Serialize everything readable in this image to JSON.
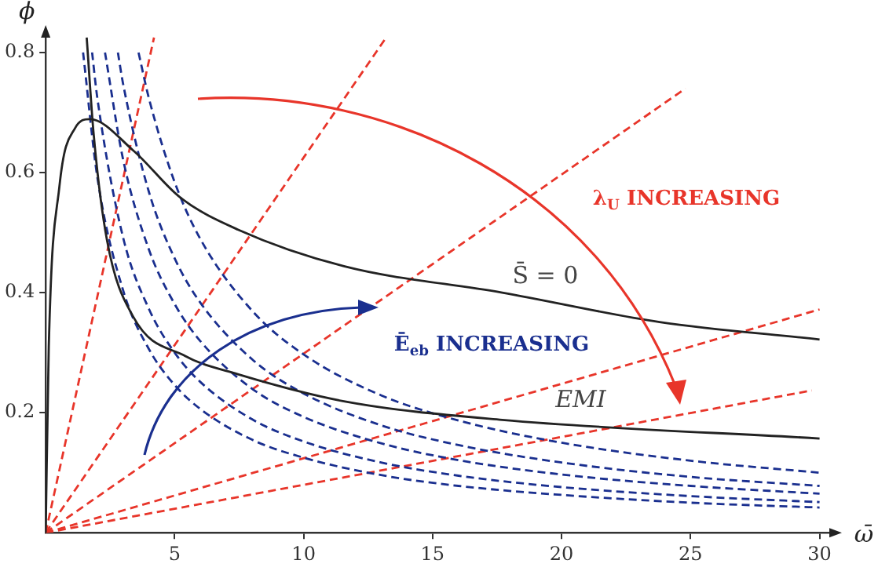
{
  "chart_data": {
    "type": "line",
    "xlabel": "ω̄",
    "ylabel": "ϕ",
    "xlim": [
      0,
      30.5
    ],
    "ylim": [
      0,
      0.83
    ],
    "xticks": [
      5,
      10,
      15,
      20,
      25,
      30
    ],
    "yticks": [
      0.2,
      0.4,
      0.6,
      0.8
    ],
    "grid": false,
    "legend": false,
    "marker": "none",
    "series": [
      {
        "name": "S̄ = 0",
        "color": "#222222",
        "line_style": "solid",
        "x": [
          0,
          0.12,
          0.53,
          1.14,
          1.71,
          3.39,
          5.23,
          7.45,
          11.56,
          17.7,
          23.8,
          30
        ],
        "values": [
          0,
          0.31,
          0.576,
          0.674,
          0.689,
          0.637,
          0.558,
          0.505,
          0.444,
          0.4,
          0.351,
          0.322
        ]
      },
      {
        "name": "EMI",
        "color": "#222222",
        "line_style": "solid",
        "x": [
          1.59,
          1.86,
          2.37,
          3.39,
          5.43,
          7.45,
          11.56,
          17.7,
          30
        ],
        "values": [
          0.825,
          0.664,
          0.489,
          0.36,
          0.294,
          0.264,
          0.219,
          0.188,
          0.157
        ]
      },
      {
        "color": "#1a2f8f",
        "line_style": "dashed",
        "x": [
          1.45,
          2,
          3,
          4,
          5,
          6,
          8,
          10,
          13,
          16,
          20,
          25,
          30
        ],
        "values": [
          0.8,
          0.593,
          0.404,
          0.306,
          0.246,
          0.206,
          0.155,
          0.125,
          0.096,
          0.078,
          0.063,
          0.05,
          0.042
        ]
      },
      {
        "color": "#1a2f8f",
        "line_style": "dashed",
        "x": [
          1.8,
          2,
          3,
          4,
          5,
          6,
          8,
          10,
          13,
          16,
          20,
          25,
          30
        ],
        "values": [
          0.8,
          0.725,
          0.492,
          0.373,
          0.3,
          0.251,
          0.189,
          0.152,
          0.117,
          0.095,
          0.076,
          0.061,
          0.051
        ]
      },
      {
        "color": "#1a2f8f",
        "line_style": "dashed",
        "x": [
          2.3,
          3,
          4,
          5,
          6,
          8,
          10,
          13,
          16,
          20,
          25,
          30
        ],
        "values": [
          0.8,
          0.622,
          0.472,
          0.381,
          0.319,
          0.24,
          0.193,
          0.149,
          0.121,
          0.097,
          0.078,
          0.065
        ]
      },
      {
        "color": "#1a2f8f",
        "line_style": "dashed",
        "x": [
          2.8,
          3,
          4,
          5,
          6,
          8,
          10,
          13,
          16,
          20,
          25,
          30
        ],
        "values": [
          0.8,
          0.748,
          0.568,
          0.457,
          0.383,
          0.289,
          0.232,
          0.179,
          0.146,
          0.117,
          0.093,
          0.078
        ]
      },
      {
        "color": "#1a2f8f",
        "line_style": "dashed",
        "x": [
          3.6,
          4,
          5,
          6,
          8,
          10,
          13,
          16,
          20,
          25,
          30
        ],
        "values": [
          0.8,
          0.724,
          0.584,
          0.489,
          0.37,
          0.297,
          0.229,
          0.187,
          0.15,
          0.12,
          0.1
        ]
      },
      {
        "color": "#e8352a",
        "line_style": "dashed",
        "x": [
          0,
          4.2
        ],
        "values": [
          0,
          0.825
        ]
      },
      {
        "color": "#e8352a",
        "line_style": "dashed",
        "x": [
          0,
          13.2
        ],
        "values": [
          0,
          0.825
        ]
      },
      {
        "color": "#e8352a",
        "line_style": "dashed",
        "x": [
          0,
          24.8
        ],
        "values": [
          0,
          0.74
        ]
      },
      {
        "color": "#e8352a",
        "line_style": "dashed",
        "x": [
          0,
          30
        ],
        "values": [
          0,
          0.372
        ]
      },
      {
        "color": "#e8352a",
        "line_style": "dashed",
        "x": [
          0,
          29.7
        ],
        "values": [
          0,
          0.237
        ]
      }
    ],
    "annotations": [
      "λ$_{U}$ INCREASING",
      "Ē$_{eb}$ INCREASING"
    ]
  }
}
